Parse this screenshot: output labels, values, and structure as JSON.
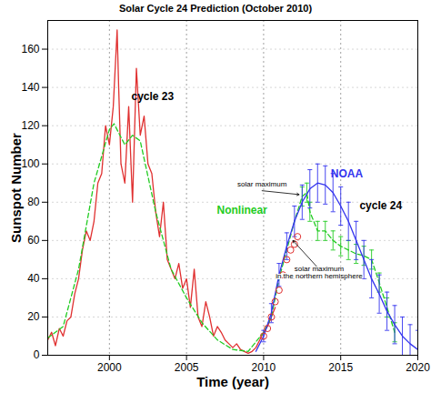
{
  "chart_data": {
    "type": "line",
    "title": "Solar Cycle 24 Prediction (October 2010)",
    "x_label": "Time (year)",
    "y_label": "Sunspot Number",
    "xlim": [
      1996,
      2020
    ],
    "xticks": [
      2000,
      2005,
      2010,
      2015,
      2020
    ],
    "ylim": [
      0,
      175
    ],
    "yticks": [
      0,
      20,
      40,
      60,
      80,
      100,
      120,
      140,
      160
    ],
    "grid": true,
    "series": [
      {
        "type": "line",
        "color": "#e03030",
        "line_style": "solid",
        "x": [
          1996,
          1996.25,
          1996.5,
          1996.75,
          1997,
          1997.25,
          1997.5,
          1997.75,
          1998,
          1998.25,
          1998.5,
          1998.75,
          1999,
          1999.25,
          1999.5,
          1999.75,
          2000,
          2000.25,
          2000.5,
          2000.6,
          2000.75,
          2001,
          2001.25,
          2001.5,
          2001.75,
          2002,
          2002.25,
          2002.5,
          2002.75,
          2003,
          2003.25,
          2003.5,
          2003.75,
          2004,
          2004.25,
          2004.5,
          2004.75,
          2005,
          2005.25,
          2005.5,
          2005.75,
          2006,
          2006.25,
          2006.5,
          2006.75,
          2007,
          2007.25,
          2007.5,
          2007.75,
          2008,
          2008.25,
          2008.5,
          2008.75,
          2009,
          2009.25,
          2009.5,
          2009.75,
          2010,
          2010.25,
          2010.5,
          2010.75
        ],
        "values": [
          8,
          12,
          5,
          14,
          10,
          18,
          20,
          32,
          40,
          55,
          65,
          60,
          70,
          90,
          95,
          120,
          110,
          130,
          170,
          140,
          100,
          90,
          130,
          80,
          150,
          115,
          125,
          100,
          95,
          75,
          62,
          80,
          50,
          45,
          40,
          48,
          35,
          40,
          25,
          45,
          20,
          15,
          28,
          20,
          10,
          15,
          12,
          8,
          6,
          4,
          6,
          3,
          2,
          1,
          2,
          4,
          8,
          12,
          15,
          20,
          25
        ]
      },
      {
        "type": "line",
        "color": "#22cc22",
        "line_style": "dashed",
        "x": [
          1996,
          1997,
          1998,
          1999,
          2000,
          2000.3,
          2001,
          2001.5,
          2002,
          2003,
          2004,
          2005,
          2006,
          2007,
          2008,
          2009,
          2010,
          2010.5,
          2011,
          2011.5,
          2012,
          2012.5,
          2012.8,
          2013,
          2013.5,
          2014,
          2014.5,
          2015,
          2015.5,
          2016,
          2016.5,
          2017,
          2017.5,
          2018,
          2018.5
        ],
        "values": [
          9,
          15,
          45,
          90,
          118,
          121,
          110,
          115,
          112,
          75,
          45,
          30,
          17,
          8,
          3,
          2,
          12,
          20,
          40,
          55,
          70,
          83,
          85,
          75,
          65,
          65,
          60,
          57,
          55,
          53,
          52,
          50,
          38,
          25,
          12
        ],
        "errors": [
          null,
          null,
          null,
          null,
          null,
          null,
          null,
          null,
          null,
          null,
          null,
          null,
          null,
          null,
          null,
          null,
          null,
          null,
          null,
          null,
          null,
          5,
          5,
          5,
          5,
          5,
          5,
          5,
          5,
          5,
          5,
          5,
          5,
          5,
          5
        ]
      },
      {
        "type": "line",
        "color": "#3333ee",
        "line_style": "solid",
        "x": [
          2009.5,
          2010,
          2010.5,
          2011,
          2011.5,
          2012,
          2012.5,
          2013,
          2013.5,
          2014,
          2014.5,
          2015,
          2015.5,
          2016,
          2016.5,
          2017,
          2017.5,
          2018,
          2018.5,
          2019,
          2019.5,
          2020
        ],
        "values": [
          2,
          10,
          22,
          42,
          57,
          70,
          80,
          87,
          90,
          89,
          85,
          78,
          70,
          60,
          50,
          40,
          32,
          23,
          16,
          10,
          6,
          3
        ],
        "errors": [
          null,
          3,
          5,
          6,
          7,
          8,
          9,
          10,
          10,
          10,
          10,
          10,
          10,
          10,
          10,
          10,
          10,
          10,
          10,
          10,
          10,
          10
        ]
      },
      {
        "type": "scatter",
        "color": "#e03030",
        "marker": "circle",
        "x": [
          2010,
          2010.25,
          2010.5,
          2010.75,
          2011,
          2011.25,
          2011.5,
          2011.75,
          2012,
          2012.2
        ],
        "values": [
          10,
          14,
          20,
          28,
          34,
          42,
          50,
          55,
          58,
          62
        ]
      }
    ],
    "annotations": [
      {
        "text": "cycle 23",
        "x": 2002.8,
        "y": 135,
        "color": "#000000"
      },
      {
        "text": "cycle 24",
        "x": 2017.6,
        "y": 78,
        "color": "#000000"
      },
      {
        "text": "NOAA",
        "x": 2015.4,
        "y": 95,
        "color": "#3333ee"
      },
      {
        "text": "Nonlinear",
        "x": 2008.6,
        "y": 76,
        "color": "#22cc22"
      },
      {
        "text": "solar maximum",
        "x": 2009.9,
        "y": 88,
        "color": "#000000",
        "arrow_to": [
          2012.3,
          84
        ]
      },
      {
        "text": "solar maximum\nin the northern hemisphere",
        "x": 2013.6,
        "y": 40,
        "color": "#000000",
        "arrow_to": [
          2011.9,
          60
        ]
      }
    ]
  }
}
